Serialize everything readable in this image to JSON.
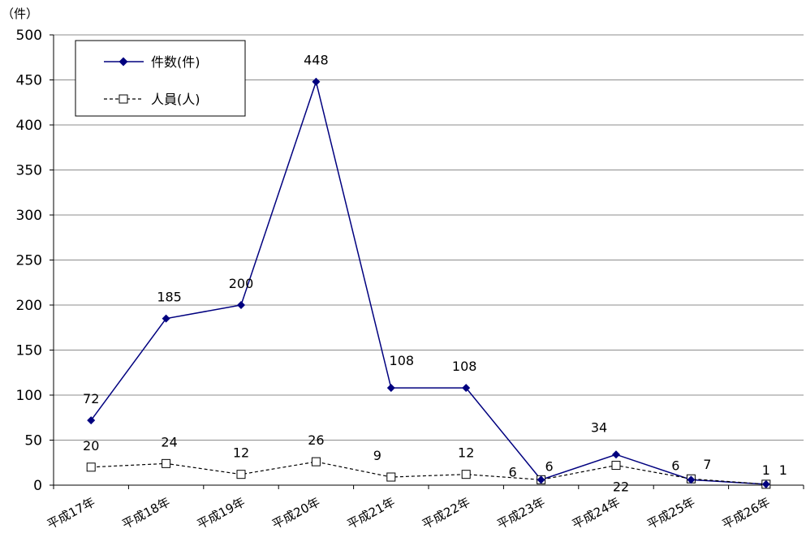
{
  "chart_data": {
    "type": "line",
    "y_unit": "（件）",
    "categories": [
      "平成17年",
      "平成18年",
      "平成19年",
      "平成20年",
      "平成21年",
      "平成22年",
      "平成23年",
      "平成24年",
      "平成25年",
      "平成26年"
    ],
    "ylim": [
      0,
      500
    ],
    "yticks": [
      0,
      50,
      100,
      150,
      200,
      250,
      300,
      350,
      400,
      450,
      500
    ],
    "grid": true,
    "legend_position": "top-left",
    "series": [
      {
        "name": "件数(件)",
        "values": [
          72,
          185,
          200,
          448,
          108,
          108,
          6,
          34,
          6,
          1
        ],
        "color": "#00007f",
        "marker": "diamond",
        "style": "solid"
      },
      {
        "name": "人員(人)",
        "values": [
          20,
          24,
          12,
          26,
          9,
          12,
          6,
          22,
          7,
          1
        ],
        "color": "#000000",
        "marker": "square",
        "style": "dashed"
      }
    ]
  }
}
